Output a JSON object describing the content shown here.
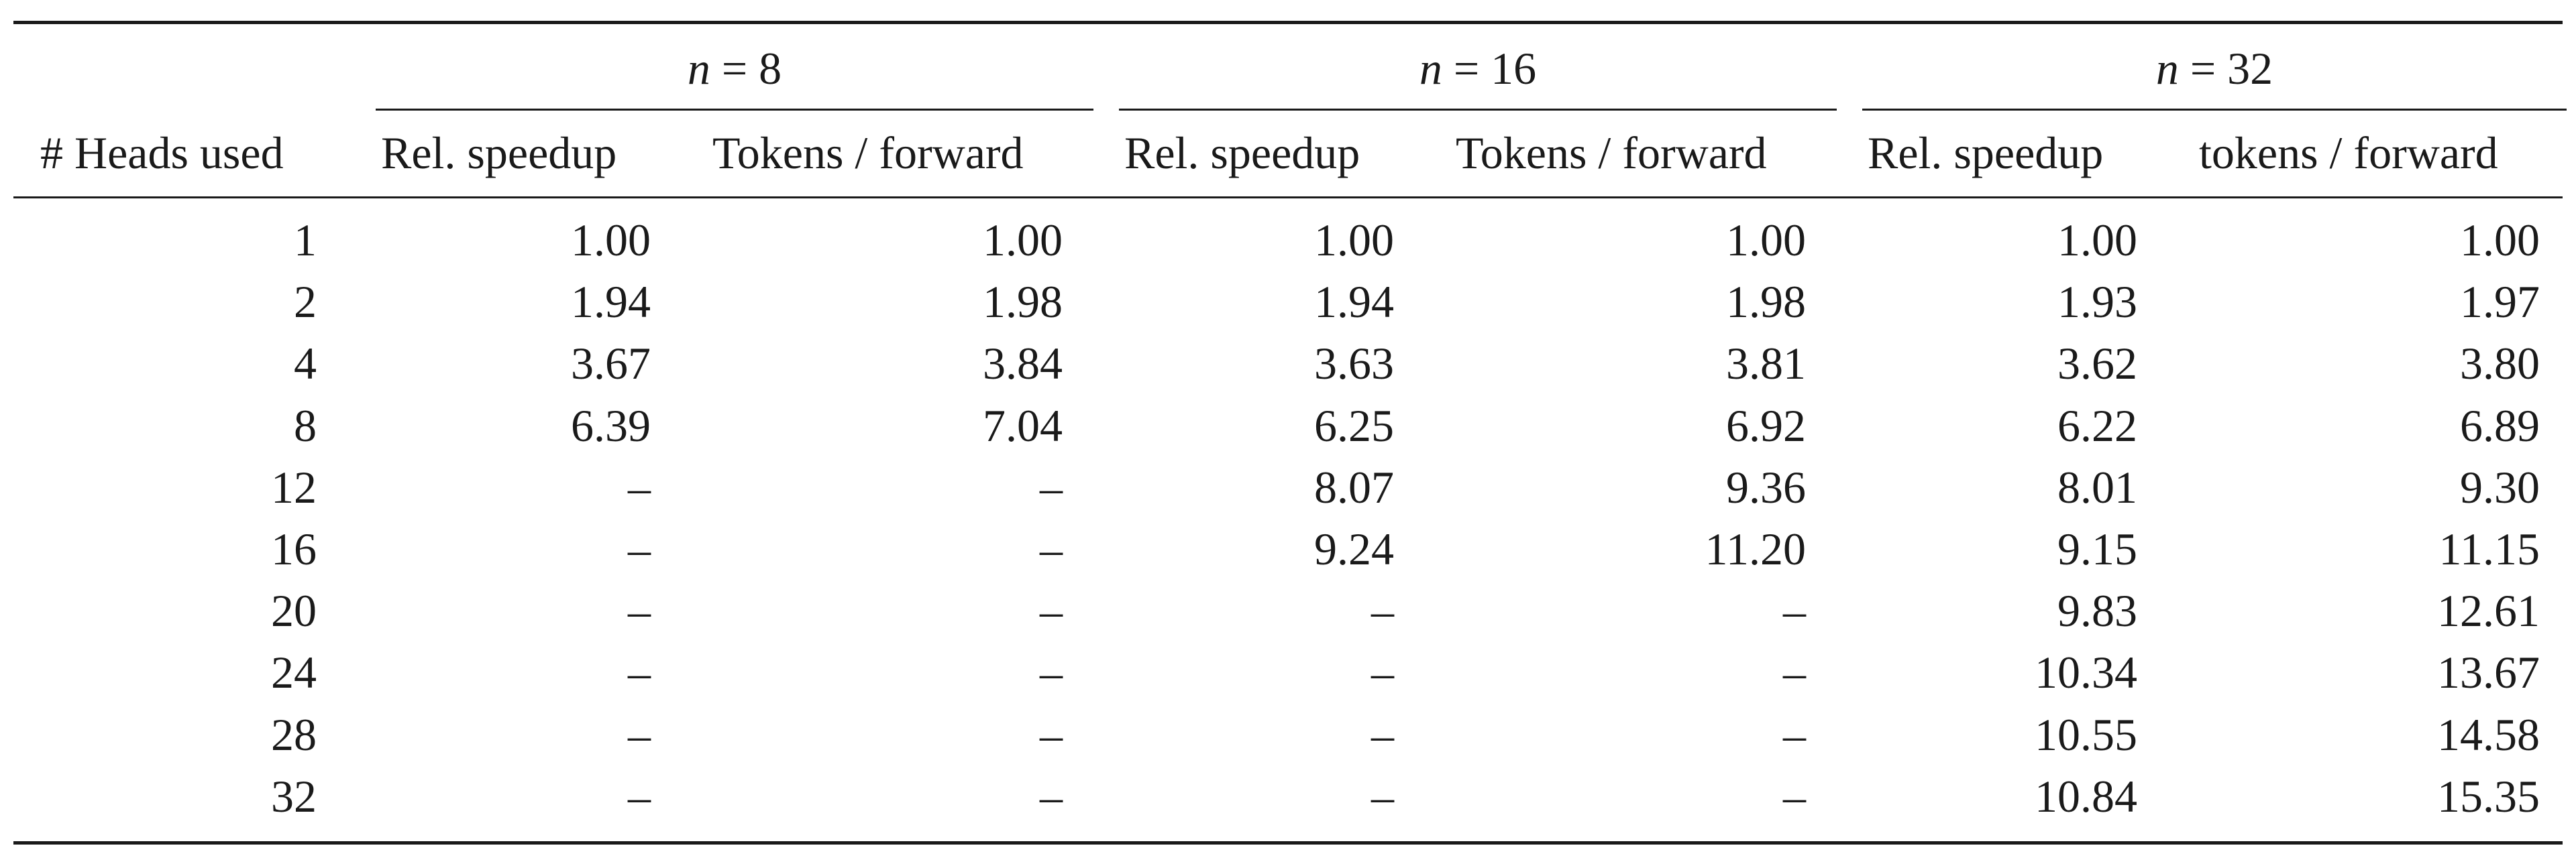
{
  "table": {
    "first_header": "# Heads used",
    "groups": [
      {
        "n_var": "n",
        "n_eq": " = ",
        "n_val": "8",
        "cols": [
          "Rel. speedup",
          "Tokens / forward"
        ]
      },
      {
        "n_var": "n",
        "n_eq": " = ",
        "n_val": "16",
        "cols": [
          "Rel. speedup",
          "Tokens / forward"
        ]
      },
      {
        "n_var": "n",
        "n_eq": " = ",
        "n_val": "32",
        "cols": [
          "Rel. speedup",
          "tokens / forward"
        ]
      }
    ],
    "rows": [
      [
        "1",
        "1.00",
        "1.00",
        "1.00",
        "1.00",
        "1.00",
        "1.00"
      ],
      [
        "2",
        "1.94",
        "1.98",
        "1.94",
        "1.98",
        "1.93",
        "1.97"
      ],
      [
        "4",
        "3.67",
        "3.84",
        "3.63",
        "3.81",
        "3.62",
        "3.80"
      ],
      [
        "8",
        "6.39",
        "7.04",
        "6.25",
        "6.92",
        "6.22",
        "6.89"
      ],
      [
        "12",
        "–",
        "–",
        "8.07",
        "9.36",
        "8.01",
        "9.30"
      ],
      [
        "16",
        "–",
        "–",
        "9.24",
        "11.20",
        "9.15",
        "11.15"
      ],
      [
        "20",
        "–",
        "–",
        "–",
        "–",
        "9.83",
        "12.61"
      ],
      [
        "24",
        "–",
        "–",
        "–",
        "–",
        "10.34",
        "13.67"
      ],
      [
        "28",
        "–",
        "–",
        "–",
        "–",
        "10.55",
        "14.58"
      ],
      [
        "32",
        "–",
        "–",
        "–",
        "–",
        "10.84",
        "15.35"
      ]
    ]
  }
}
